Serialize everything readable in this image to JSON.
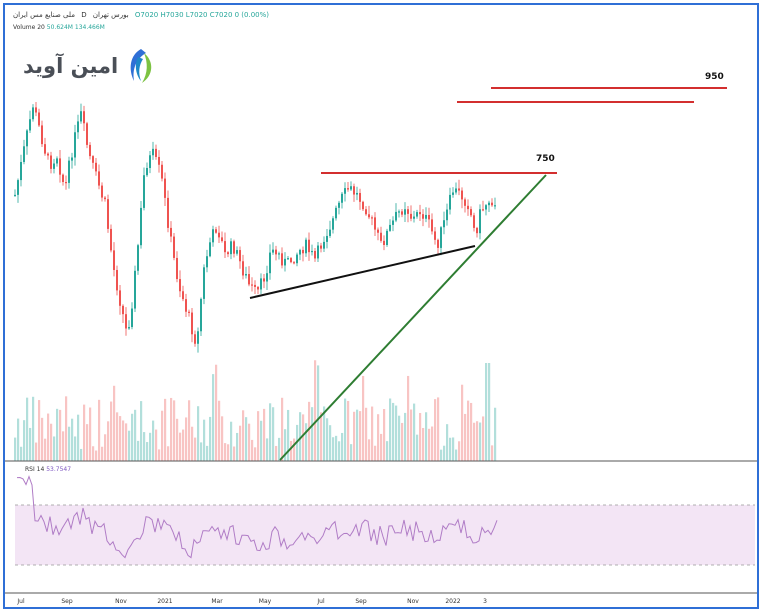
{
  "header": {
    "symbol": "ملی صنایع مس ایران",
    "interval": "D",
    "exchange": "بورس تهران",
    "ohlc": "O7020 H7030 L7020 C7020 0 (0.00%)",
    "volume_label": "Volume 20",
    "volume_values": [
      "50.624M",
      "134.466M"
    ],
    "rsi_label": "RSI 14",
    "rsi_value": "53.7547"
  },
  "logo": {
    "text": "امین آوید",
    "icon": "wave-leaf-icon"
  },
  "colors": {
    "up": "#26a69a",
    "down": "#ef5350",
    "resistance": "#d32f2f",
    "support": "#111111",
    "trendline": "#2e7d32",
    "rsi_line": "#b07cc6",
    "rsi_band": "#f3e5f5",
    "frame": "#2f6fd6"
  },
  "annotations": {
    "level_750": "750",
    "level_950": "950"
  },
  "chart_data": {
    "type": "candlestick",
    "x_ticks": [
      "Jul",
      "Sep",
      "Nov",
      "2021",
      "Mar",
      "May",
      "Jul",
      "Sep",
      "Nov",
      "2022",
      "3"
    ],
    "rsi": {
      "upper": 70,
      "lower": 30
    },
    "grid": false
  }
}
